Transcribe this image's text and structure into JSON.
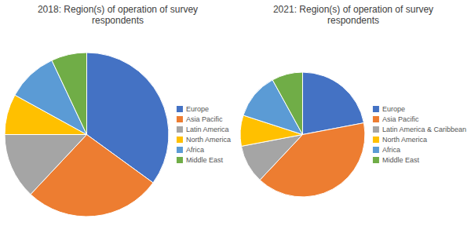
{
  "chart_data": [
    {
      "type": "pie",
      "title": "2018: Region(s) of operation of survey\nrespondents",
      "categories": [
        "Europe",
        "Asia Pacific",
        "Latin America",
        "North America",
        "Africa",
        "Middle East"
      ],
      "values": [
        35,
        27,
        13,
        8,
        10,
        7
      ],
      "colors": [
        "#4472C4",
        "#ED7D31",
        "#A5A5A5",
        "#FFC000",
        "#5B9BD5",
        "#70AD47"
      ],
      "legend": "right"
    },
    {
      "type": "pie",
      "title": "2021: Region(s) of operation of survey\nrespondents",
      "categories": [
        "Europe",
        "Asia Pacific",
        "Latin America & Caribbean",
        "North America",
        "Africa",
        "Middle East"
      ],
      "values": [
        22,
        40,
        10,
        8,
        12,
        8
      ],
      "colors": [
        "#4472C4",
        "#ED7D31",
        "#A5A5A5",
        "#FFC000",
        "#5B9BD5",
        "#70AD47"
      ],
      "legend": "right"
    }
  ]
}
